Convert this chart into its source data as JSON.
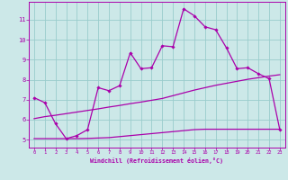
{
  "xlabel": "Windchill (Refroidissement éolien,°C)",
  "background_color": "#cce8e8",
  "line_color": "#aa00aa",
  "grid_color": "#99cccc",
  "spine_color": "#aa00aa",
  "x_ticks": [
    0,
    1,
    2,
    3,
    4,
    5,
    6,
    7,
    8,
    9,
    10,
    11,
    12,
    13,
    14,
    15,
    16,
    17,
    18,
    19,
    20,
    21,
    22,
    23
  ],
  "y_ticks": [
    5,
    6,
    7,
    8,
    9,
    10,
    11
  ],
  "xlim": [
    -0.5,
    23.5
  ],
  "ylim": [
    4.6,
    11.9
  ],
  "series1_x": [
    0,
    1,
    2,
    3,
    4,
    5,
    6,
    7,
    8,
    9,
    10,
    11,
    12,
    13,
    14,
    15,
    16,
    17,
    18,
    19,
    20,
    21,
    22,
    23
  ],
  "series1_y": [
    7.1,
    6.85,
    5.8,
    5.05,
    5.2,
    5.5,
    7.6,
    7.45,
    7.7,
    9.35,
    8.55,
    8.6,
    9.7,
    9.65,
    11.55,
    11.2,
    10.65,
    10.5,
    9.6,
    8.55,
    8.6,
    8.3,
    8.05,
    5.5
  ],
  "series2_x": [
    0,
    1,
    2,
    3,
    4,
    5,
    6,
    7,
    8,
    9,
    10,
    11,
    12,
    13,
    14,
    15,
    16,
    17,
    18,
    19,
    20,
    21,
    22,
    23
  ],
  "series2_y": [
    6.05,
    6.15,
    6.22,
    6.3,
    6.38,
    6.46,
    6.54,
    6.63,
    6.71,
    6.8,
    6.88,
    6.97,
    7.06,
    7.2,
    7.34,
    7.48,
    7.6,
    7.72,
    7.82,
    7.92,
    8.02,
    8.1,
    8.18,
    8.25
  ],
  "series3_x": [
    0,
    1,
    2,
    3,
    4,
    5,
    6,
    7,
    8,
    9,
    10,
    11,
    12,
    13,
    14,
    15,
    16,
    17,
    18,
    19,
    20,
    21,
    22,
    23
  ],
  "series3_y": [
    5.05,
    5.05,
    5.05,
    5.05,
    5.05,
    5.06,
    5.08,
    5.1,
    5.15,
    5.2,
    5.25,
    5.3,
    5.35,
    5.4,
    5.45,
    5.5,
    5.52,
    5.52,
    5.52,
    5.52,
    5.52,
    5.52,
    5.52,
    5.52
  ]
}
